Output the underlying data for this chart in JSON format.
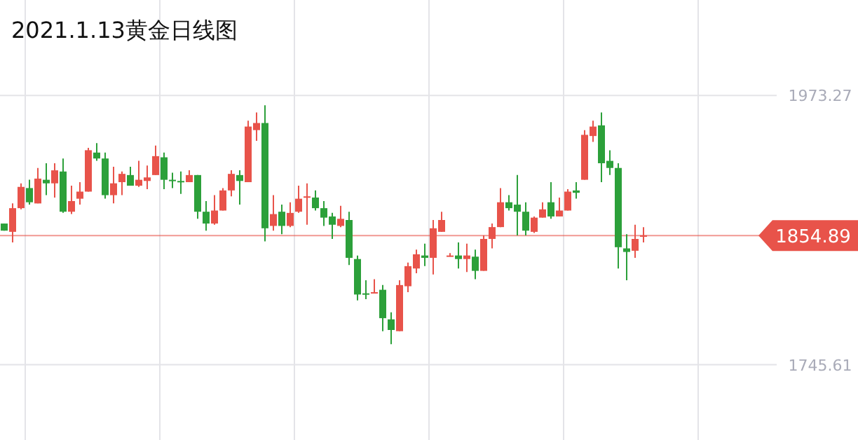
{
  "chart_data": {
    "type": "candlestick",
    "title": "2021.1.13黄金日线图",
    "categories": [
      null,
      null,
      null,
      null,
      null,
      null,
      null,
      null,
      null,
      null,
      null,
      null,
      null,
      null,
      null,
      null,
      null,
      null,
      null,
      null,
      null,
      null,
      null,
      null,
      null,
      null,
      null,
      null,
      null,
      null,
      null,
      null,
      null,
      null,
      null,
      null,
      null,
      null,
      null,
      null,
      null,
      null,
      null,
      null,
      null,
      null,
      null,
      null,
      null,
      null,
      null,
      null,
      null,
      null,
      null,
      null,
      null,
      null,
      null,
      null,
      null,
      null,
      null,
      null,
      null,
      null,
      null,
      null,
      null,
      null,
      null,
      null,
      null,
      null,
      null,
      null,
      null,
      null,
      null,
      null,
      null,
      null,
      null,
      null,
      null,
      null,
      null,
      null,
      null,
      null,
      null
    ],
    "ohlc": [
      [
        1865,
        1865,
        1859,
        1859
      ],
      [
        1858,
        1882,
        1849,
        1878
      ],
      [
        1878,
        1899,
        1877,
        1896
      ],
      [
        1895,
        1902,
        1881,
        1883
      ],
      [
        1882,
        1912,
        1882,
        1903
      ],
      [
        1902,
        1916,
        1889,
        1899
      ],
      [
        1899,
        1916,
        1887,
        1910
      ],
      [
        1909,
        1920,
        1874,
        1875
      ],
      [
        1875,
        1897,
        1873,
        1884
      ],
      [
        1886,
        1900,
        1881,
        1892
      ],
      [
        1892,
        1929,
        1892,
        1927
      ],
      [
        1925,
        1933,
        1918,
        1920
      ],
      [
        1920,
        1925,
        1886,
        1889
      ],
      [
        1889,
        1913,
        1882,
        1899
      ],
      [
        1900,
        1909,
        1889,
        1907
      ],
      [
        1906,
        1913,
        1897,
        1897
      ],
      [
        1897,
        1918,
        1896,
        1902
      ],
      [
        1901,
        1914,
        1894,
        1904
      ],
      [
        1906,
        1931,
        1906,
        1922
      ],
      [
        1921,
        1925,
        1894,
        1902
      ],
      [
        1902,
        1908,
        1895,
        1901
      ],
      [
        1901,
        1909,
        1890,
        1900
      ],
      [
        1900,
        1910,
        1900,
        1906
      ],
      [
        1906,
        1906,
        1869,
        1875
      ],
      [
        1875,
        1884,
        1859,
        1865
      ],
      [
        1865,
        1889,
        1864,
        1876
      ],
      [
        1876,
        1895,
        1876,
        1893
      ],
      [
        1893,
        1910,
        1888,
        1907
      ],
      [
        1906,
        1910,
        1881,
        1901
      ],
      [
        1900,
        1952,
        1900,
        1947
      ],
      [
        1944,
        1959,
        1935,
        1950
      ],
      [
        1950,
        1965,
        1850,
        1861
      ],
      [
        1863,
        1889,
        1859,
        1873
      ],
      [
        1875,
        1881,
        1856,
        1863
      ],
      [
        1863,
        1883,
        1862,
        1874
      ],
      [
        1875,
        1897,
        1874,
        1886
      ],
      [
        1887,
        1899,
        1864,
        1888
      ],
      [
        1887,
        1893,
        1876,
        1878
      ],
      [
        1878,
        1884,
        1863,
        1870
      ],
      [
        1871,
        1874,
        1852,
        1864
      ],
      [
        1863,
        1880,
        1862,
        1869
      ],
      [
        1868,
        1875,
        1830,
        1836
      ],
      [
        1835,
        1838,
        1800,
        1805
      ],
      [
        1806,
        1817,
        1801,
        1805
      ],
      [
        1806,
        1818,
        1806,
        1807
      ],
      [
        1809,
        1813,
        1774,
        1785
      ],
      [
        1784,
        1790,
        1763,
        1775
      ],
      [
        1774,
        1817,
        1774,
        1813
      ],
      [
        1812,
        1832,
        1807,
        1829
      ],
      [
        1827,
        1843,
        1823,
        1839
      ],
      [
        1838,
        1848,
        1829,
        1836
      ],
      [
        1836,
        1868,
        1822,
        1861
      ],
      [
        1858,
        1875,
        1858,
        1868
      ],
      [
        1837,
        1840,
        1837,
        1838
      ],
      [
        1838,
        1849,
        1827,
        1835
      ],
      [
        1835,
        1848,
        1824,
        1838
      ],
      [
        1837,
        1843,
        1818,
        1825
      ],
      [
        1825,
        1855,
        1825,
        1852
      ],
      [
        1852,
        1865,
        1844,
        1862
      ],
      [
        1862,
        1895,
        1862,
        1883
      ],
      [
        1883,
        1889,
        1876,
        1878
      ],
      [
        1881,
        1906,
        1855,
        1875
      ],
      [
        1875,
        1883,
        1855,
        1859
      ],
      [
        1858,
        1871,
        1857,
        1870
      ],
      [
        1870,
        1883,
        1870,
        1877
      ],
      [
        1883,
        1900,
        1869,
        1871
      ],
      [
        1871,
        1887,
        1871,
        1876
      ],
      [
        1876,
        1894,
        1876,
        1892
      ],
      [
        1893,
        1900,
        1886,
        1891
      ],
      [
        1902,
        1944,
        1902,
        1940
      ],
      [
        1939,
        1952,
        1934,
        1947
      ],
      [
        1948,
        1959,
        1900,
        1916
      ],
      [
        1918,
        1927,
        1906,
        1912
      ],
      [
        1912,
        1916,
        1827,
        1845
      ],
      [
        1844,
        1856,
        1817,
        1841
      ],
      [
        1842,
        1864,
        1836,
        1852
      ],
      [
        1854,
        1862,
        1849,
        1855
      ],
      null,
      null,
      null,
      null,
      null,
      null,
      null,
      null,
      null,
      null,
      null,
      null,
      null,
      null
    ],
    "colors": [
      "#2ca03a",
      "#e8534a",
      "#e8534a",
      "#2ca03a",
      "#e8534a",
      "#2ca03a",
      "#e8534a",
      "#2ca03a",
      "#e8534a",
      "#e8534a",
      "#e8534a",
      "#2ca03a",
      "#2ca03a",
      "#e8534a",
      "#e8534a",
      "#2ca03a",
      "#e8534a",
      "#e8534a",
      "#e8534a",
      "#2ca03a",
      "#2ca03a",
      "#2ca03a",
      "#e8534a",
      "#2ca03a",
      "#2ca03a",
      "#e8534a",
      "#e8534a",
      "#e8534a",
      "#2ca03a",
      "#e8534a",
      "#e8534a",
      "#2ca03a",
      "#e8534a",
      "#2ca03a",
      "#e8534a",
      "#e8534a",
      "#e8534a",
      "#2ca03a",
      "#2ca03a",
      "#2ca03a",
      "#e8534a",
      "#2ca03a",
      "#2ca03a",
      "#2ca03a",
      "#e8534a",
      "#2ca03a",
      "#2ca03a",
      "#e8534a",
      "#e8534a",
      "#e8534a",
      "#2ca03a",
      "#e8534a",
      "#e8534a",
      "#e8534a",
      "#2ca03a",
      "#e8534a",
      "#2ca03a",
      "#e8534a",
      "#e8534a",
      "#e8534a",
      "#2ca03a",
      "#2ca03a",
      "#2ca03a",
      "#e8534a",
      "#e8534a",
      "#2ca03a",
      "#e8534a",
      "#e8534a",
      "#2ca03a",
      "#e8534a",
      "#e8534a",
      "#2ca03a",
      "#2ca03a",
      "#2ca03a",
      "#2ca03a",
      "#e8534a",
      "#e8534a",
      null,
      null,
      null,
      null,
      null,
      null,
      null,
      null,
      null,
      null,
      null,
      null,
      null,
      null
    ],
    "ylim": [
      1682,
      2054
    ],
    "yticks": [
      1973.27,
      1745.61
    ],
    "grid": true,
    "ref_lines": [
      {
        "axis": "y",
        "value": 1854.89,
        "label": "1854.89",
        "color": "#e8534a"
      }
    ]
  }
}
